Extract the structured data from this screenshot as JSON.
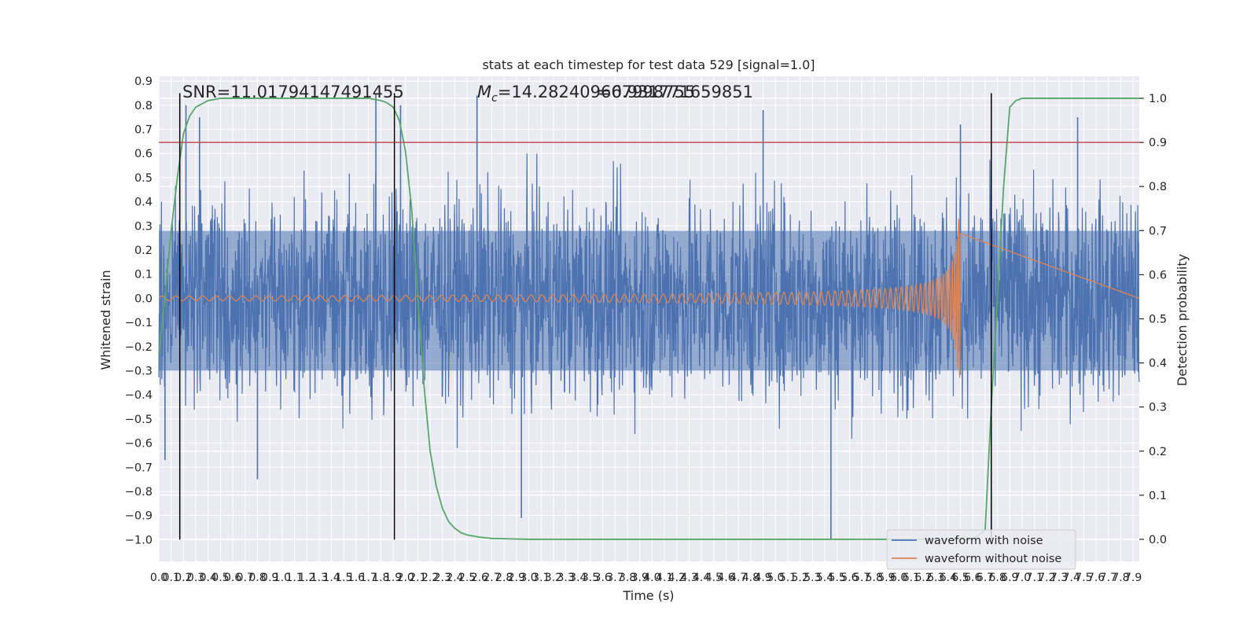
{
  "chart_data": {
    "type": "line",
    "title": "stats at each timestep for test data 529 [signal=1.0]",
    "xlabel": "Time (s)",
    "ylabel": "Whitened strain",
    "y2label": "Detection probability",
    "xlim": [
      0.0,
      7.95
    ],
    "ylim": [
      -1.09,
      0.92
    ],
    "y2lim": [
      -0.05,
      1.05
    ],
    "x_tick_labels": [
      "0.0",
      "0.1",
      "0.2",
      "0.3",
      "0.4",
      "0.5",
      "0.6",
      "0.7",
      "0.8",
      "0.9",
      "1.0",
      "1.1",
      "1.2",
      "1.3",
      "1.4",
      "1.5",
      "1.6",
      "1.7",
      "1.8",
      "1.9",
      "2.0",
      "2.1",
      "2.2",
      "2.3",
      "2.4",
      "2.5",
      "2.6",
      "2.7",
      "2.8",
      "2.9",
      "3.0",
      "3.1",
      "3.2",
      "3.3",
      "3.4",
      "3.5",
      "3.6",
      "3.7",
      "3.8",
      "3.9",
      "4.0",
      "4.1",
      "4.2",
      "4.3",
      "4.4",
      "4.5",
      "4.6",
      "4.7",
      "4.8",
      "4.9",
      "5.0",
      "5.1",
      "5.2",
      "5.3",
      "5.4",
      "5.5",
      "5.6",
      "5.7",
      "5.8",
      "5.9",
      "6.0",
      "6.1",
      "6.2",
      "6.3",
      "6.4",
      "6.5",
      "6.6",
      "6.7",
      "6.8",
      "6.9",
      "7.0",
      "7.1",
      "7.2",
      "7.3",
      "7.4",
      "7.5",
      "7.6",
      "7.7",
      "7.8",
      "7.9"
    ],
    "y_tick_labels": [
      "0.9",
      "0.8",
      "0.7",
      "0.6",
      "0.5",
      "0.4",
      "0.3",
      "0.2",
      "0.1",
      "0.0",
      "−0.1",
      "−0.2",
      "−0.3",
      "−0.4",
      "−0.5",
      "−0.6",
      "−0.7",
      "−0.8",
      "−0.9",
      "−1.0"
    ],
    "y2_tick_labels": [
      "0.0",
      "0.1",
      "0.2",
      "0.3",
      "0.4",
      "0.5",
      "0.6",
      "0.7",
      "0.8",
      "0.9",
      "1.0"
    ],
    "grid": true,
    "legend_position": "lower-right",
    "annotations": {
      "snr": "SNR=11.01794147491455",
      "mc_symbol": "M",
      "mc_sub": "c",
      "mc_value": "=14.282409667998755",
      "overlap": "=0.931771659851"
    },
    "series": [
      {
        "name": "waveform with noise",
        "color": "#4c72b0",
        "description_values": "white-noise strain, amplitude envelope roughly ±0.5 with spikes up to ~0.85 and down to ~-1.0",
        "envelope": [
          -0.5,
          0.5
        ],
        "spikes": [
          {
            "x": 0.05,
            "y": -0.67
          },
          {
            "x": 0.22,
            "y": 0.8
          },
          {
            "x": 0.33,
            "y": 0.75
          },
          {
            "x": 0.8,
            "y": -0.75
          },
          {
            "x": 1.76,
            "y": 0.85
          },
          {
            "x": 1.96,
            "y": 0.8
          },
          {
            "x": 2.58,
            "y": 0.84
          },
          {
            "x": 2.94,
            "y": -0.91
          },
          {
            "x": 4.9,
            "y": 0.78
          },
          {
            "x": 5.45,
            "y": -1.0
          },
          {
            "x": 6.5,
            "y": 0.72
          },
          {
            "x": 7.45,
            "y": 0.75
          }
        ]
      },
      {
        "name": "waveform without noise",
        "color": "#dd8452",
        "chirp_start": 0.0,
        "chirp_end": 6.5,
        "amplitude_start": 0.01,
        "amplitude_peak": 0.33,
        "frequency_start_hz": 9,
        "frequency_end_hz": 60
      },
      {
        "name": "detection probability",
        "axis": "right",
        "color": "#55a868",
        "x": [
          0.0,
          0.05,
          0.1,
          0.15,
          0.2,
          0.25,
          0.3,
          0.4,
          0.5,
          0.6,
          0.8,
          1.0,
          1.4,
          1.6,
          1.7,
          1.8,
          1.85,
          1.9,
          1.95,
          2.0,
          2.05,
          2.1,
          2.15,
          2.2,
          2.25,
          2.3,
          2.35,
          2.4,
          2.45,
          2.5,
          2.6,
          2.7,
          3.0,
          4.0,
          5.0,
          6.0,
          6.6,
          6.7,
          6.75,
          6.8,
          6.85,
          6.9,
          6.95,
          7.0,
          7.1,
          7.5,
          7.95
        ],
        "y": [
          0.42,
          0.55,
          0.7,
          0.82,
          0.92,
          0.96,
          0.98,
          0.995,
          1.0,
          1.0,
          1.0,
          1.0,
          1.0,
          1.0,
          1.0,
          0.995,
          0.99,
          0.98,
          0.95,
          0.88,
          0.75,
          0.55,
          0.35,
          0.2,
          0.12,
          0.07,
          0.04,
          0.025,
          0.015,
          0.01,
          0.005,
          0.002,
          0.0,
          0.0,
          0.0,
          0.0,
          0.0,
          0.02,
          0.3,
          0.55,
          0.8,
          0.98,
          0.995,
          1.0,
          1.0,
          1.0,
          1.0
        ]
      }
    ],
    "threshold_line": {
      "axis": "right",
      "value": 0.9,
      "color": "#c44e52"
    },
    "vertical_markers": [
      {
        "x": 0.17,
        "y_range": [
          -1.0,
          0.85
        ]
      },
      {
        "x": 1.91,
        "y_range": [
          -1.0,
          0.85
        ]
      },
      {
        "x": 6.75,
        "y_range": [
          -1.0,
          0.85
        ]
      }
    ]
  }
}
